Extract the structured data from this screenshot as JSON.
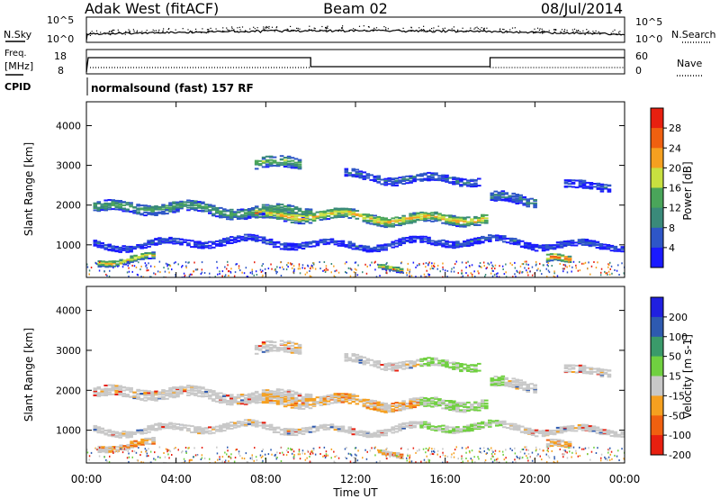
{
  "header": {
    "station": "Adak West (fitACF)",
    "beam": "Beam 02",
    "date": "08/Jul/2014"
  },
  "nsky_panel": {
    "left_label": "N.Sky",
    "right_label": "N.Search",
    "left_ticks": [
      "10^5",
      "10^0"
    ],
    "right_ticks": [
      "10^5",
      "10^0"
    ]
  },
  "freq_panel": {
    "left_label_1": "Freq.",
    "left_label_2": "[MHz]",
    "right_label": "Nave",
    "left_ticks": [
      "18",
      "8"
    ],
    "right_ticks": [
      "60",
      "0"
    ]
  },
  "cpid": {
    "label": "CPID",
    "text": "normalsound (fast) 157 RF"
  },
  "chart_data": [
    {
      "type": "heatmap",
      "panel": "power",
      "ylabel": "Slant Range [km]",
      "ylim": [
        180,
        4600
      ],
      "y_ticks": [
        "1000",
        "2000",
        "3000",
        "4000"
      ],
      "xlim": [
        0,
        24
      ],
      "colorbar_label": "Power [dB]",
      "colorbar_ticks": [
        "4",
        "8",
        "12",
        "16",
        "20",
        "24",
        "28"
      ],
      "colorbar_colors": [
        "#1a1aff",
        "#2e56c7",
        "#3a8a7a",
        "#4aa55a",
        "#c8e040",
        "#f5a020",
        "#f06010",
        "#e82010"
      ],
      "echo_bands": [
        {
          "t_start": 0.3,
          "t_end": 10.0,
          "range_center": 1900,
          "width": 260,
          "power_db": 14
        },
        {
          "t_start": 7.5,
          "t_end": 17.8,
          "range_center": 1700,
          "width": 250,
          "power_db": 22
        },
        {
          "t_start": 0.3,
          "t_end": 24.0,
          "range_center": 1050,
          "width": 160,
          "power_db": 6
        },
        {
          "t_start": 0.5,
          "t_end": 3.0,
          "range_center": 600,
          "width": 160,
          "power_db": 22
        },
        {
          "t_start": 20.5,
          "t_end": 21.6,
          "range_center": 550,
          "width": 180,
          "power_db": 28
        },
        {
          "t_start": 13.0,
          "t_end": 14.0,
          "range_center": 430,
          "width": 120,
          "power_db": 20
        },
        {
          "t_start": 7.5,
          "t_end": 9.5,
          "range_center": 3100,
          "width": 280,
          "power_db": 16
        },
        {
          "t_start": 11.5,
          "t_end": 17.5,
          "range_center": 2700,
          "width": 200,
          "power_db": 8
        },
        {
          "t_start": 18.0,
          "t_end": 20.0,
          "range_center": 2100,
          "width": 250,
          "power_db": 10
        },
        {
          "t_start": 21.3,
          "t_end": 23.3,
          "range_center": 2500,
          "width": 200,
          "power_db": 6
        }
      ]
    },
    {
      "type": "heatmap",
      "panel": "velocity",
      "ylabel": "Slant Range [km]",
      "ylim": [
        180,
        4600
      ],
      "y_ticks": [
        "1000",
        "2000",
        "3000",
        "4000"
      ],
      "xlim": [
        0,
        24
      ],
      "xlabel": "Time UT",
      "x_ticks": [
        "00:00",
        "04:00",
        "08:00",
        "12:00",
        "16:00",
        "20:00",
        "00:00"
      ],
      "colorbar_label": "Velocity [m s-1]",
      "colorbar_ticks": [
        "200",
        "100",
        "50",
        "15",
        "-15",
        "-50",
        "-100",
        "-200"
      ],
      "colorbar_colors": [
        "#2020e0",
        "#2e5ab0",
        "#3a9a6a",
        "#70d040",
        "#c8c8c8",
        "#f5a020",
        "#f06010",
        "#e82010"
      ]
    }
  ]
}
